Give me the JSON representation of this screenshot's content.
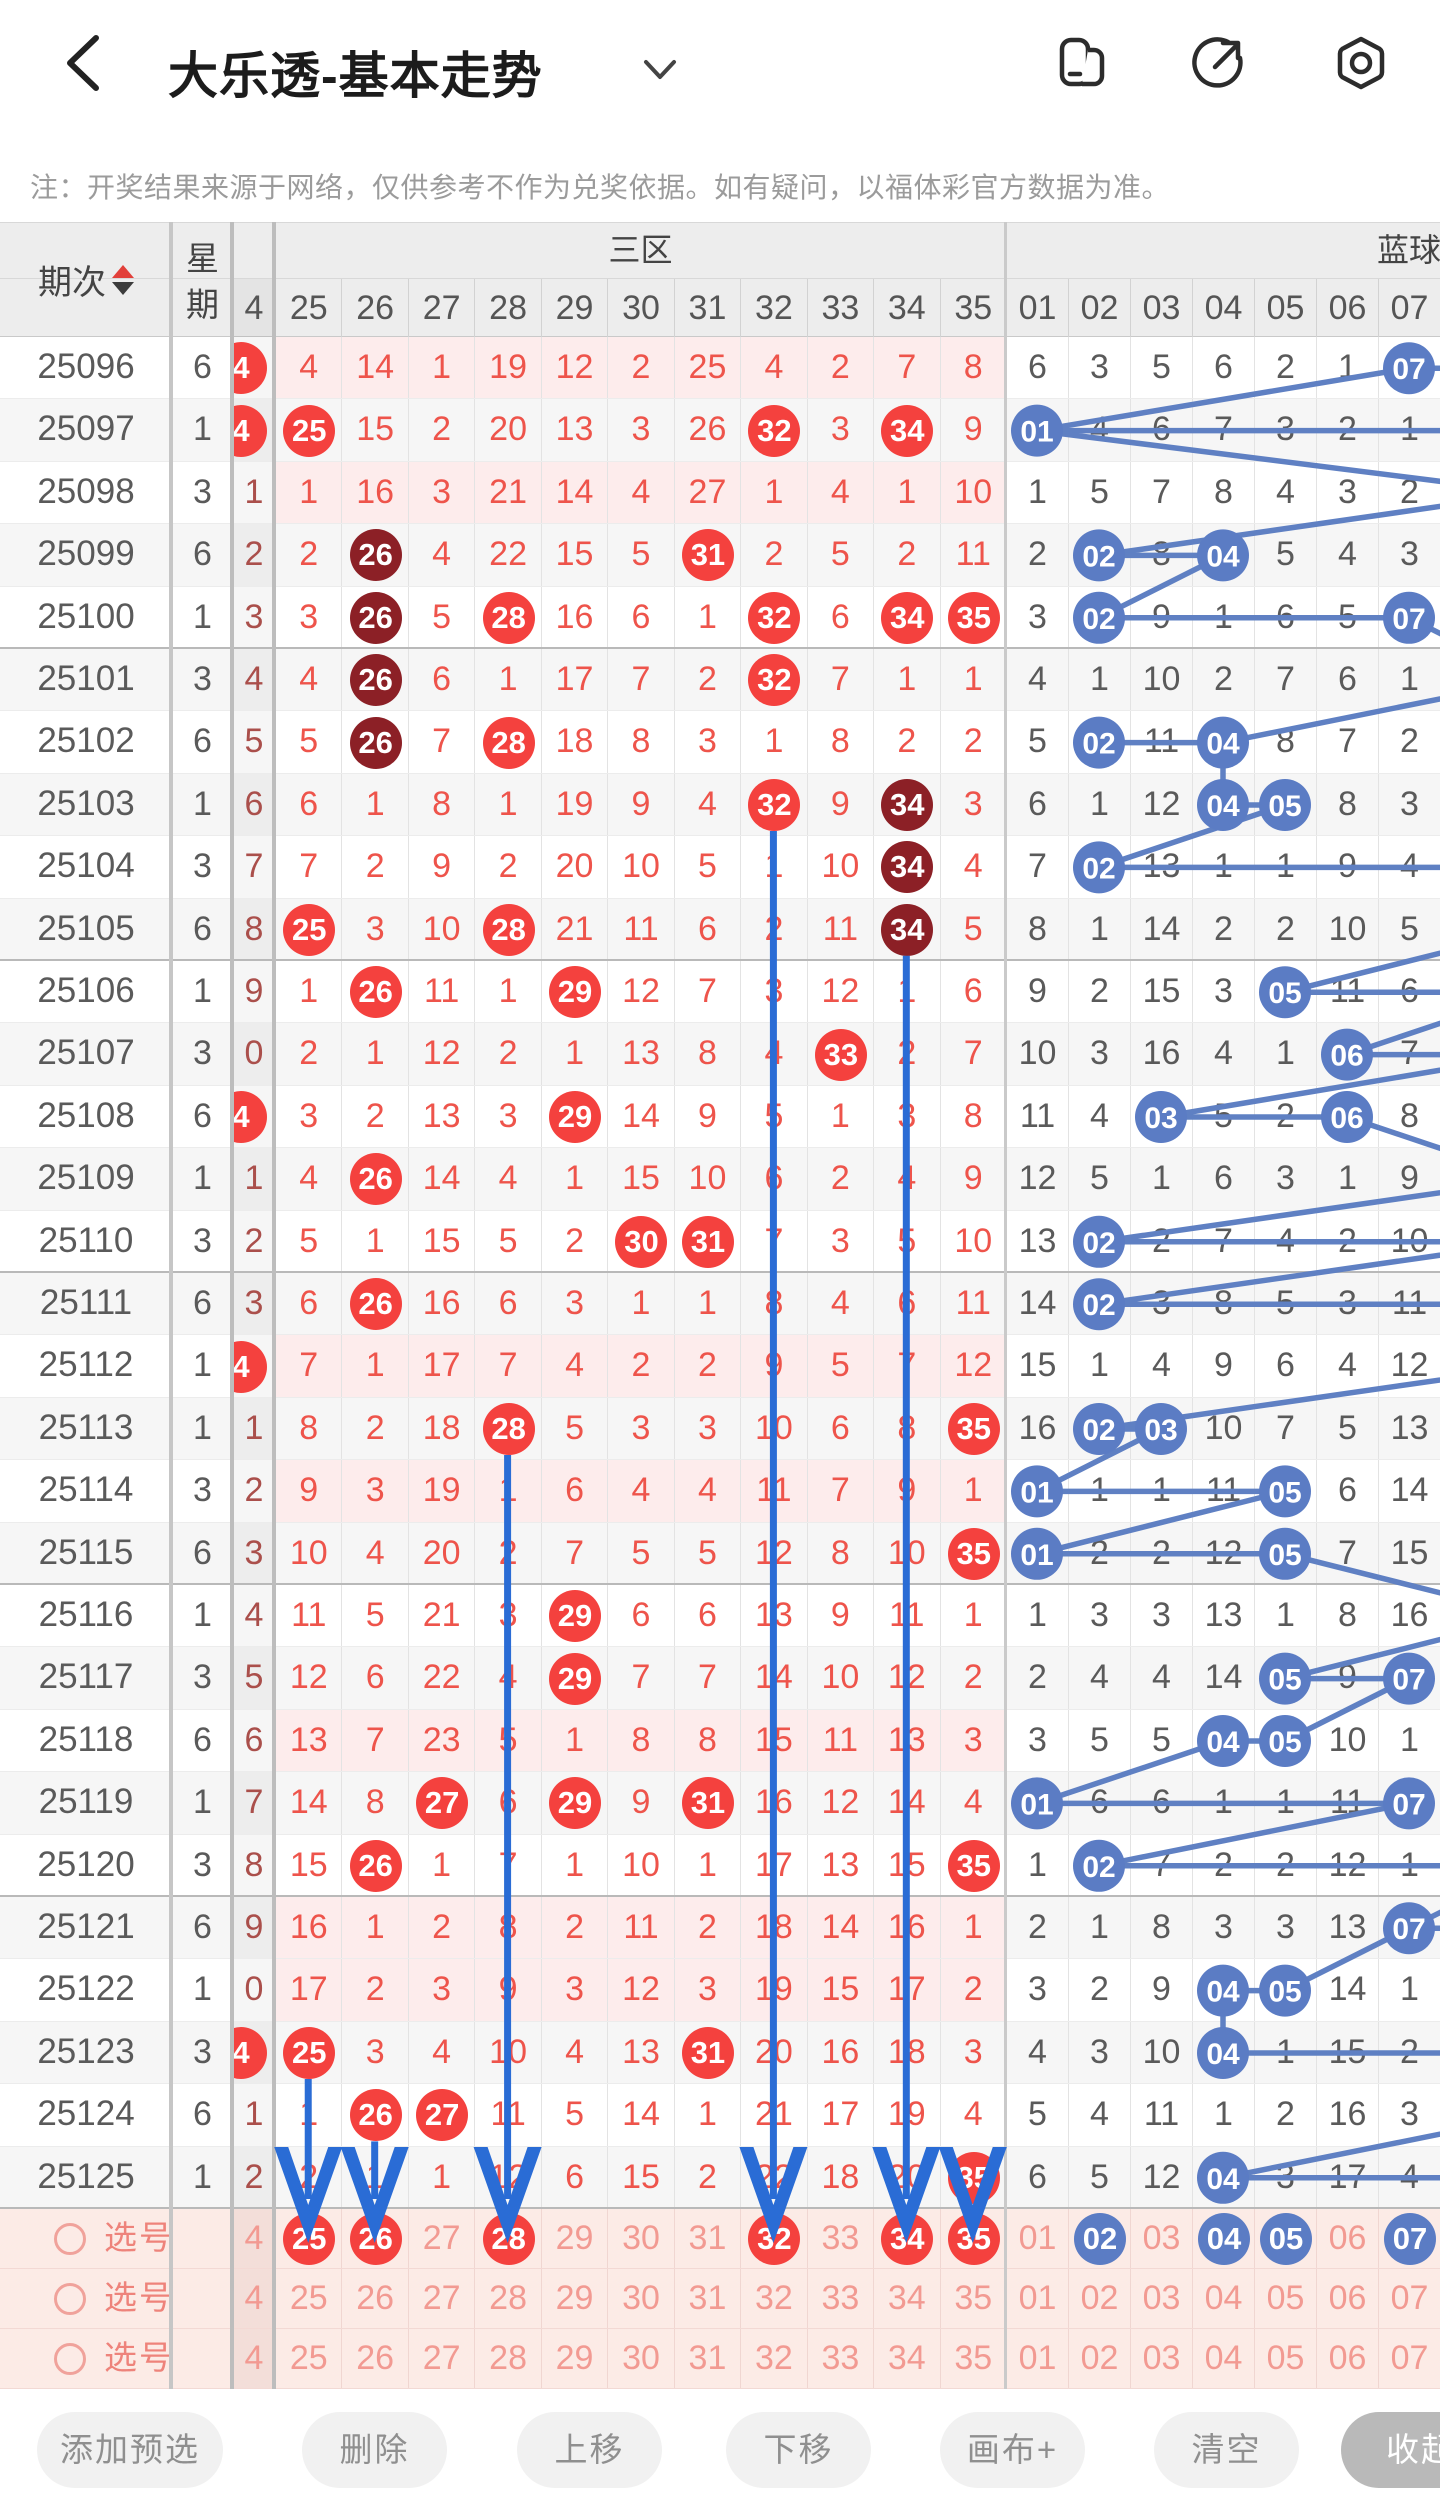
{
  "header": {
    "title": "大乐透-基本走势",
    "icons": [
      "windows-icon",
      "share-icon",
      "record-icon"
    ]
  },
  "note": "注：开奖结果来源于网络，仅供参考不作为兑奖依据。如有疑问，以福体彩官方数据为准。",
  "table": {
    "corner_label": "期次",
    "week_label_top": "星",
    "week_label_bottom": "期",
    "cut_header": "4",
    "zone_labels": [
      "三区",
      "蓝球"
    ],
    "red_cols": [
      "25",
      "26",
      "27",
      "28",
      "29",
      "30",
      "31",
      "32",
      "33",
      "34",
      "35"
    ],
    "blue_cols": [
      "01",
      "02",
      "03",
      "04",
      "05",
      "06",
      "07"
    ],
    "rows": [
      {
        "qi": "25096",
        "wk": "6",
        "cut": "*4",
        "red": [
          "4",
          "14",
          "1",
          "19",
          "12",
          "2",
          "25",
          "4",
          "2",
          "7",
          "8"
        ],
        "blue": [
          "6",
          "3",
          "5",
          "6",
          "2",
          "1",
          "*07"
        ],
        "pink": true
      },
      {
        "qi": "25097",
        "wk": "1",
        "cut": "*4",
        "red": [
          "*25",
          "15",
          "2",
          "20",
          "13",
          "3",
          "26",
          "*32",
          "3",
          "*34",
          "9"
        ],
        "blue": [
          "*01",
          "4",
          "6",
          "7",
          "3",
          "2",
          "1"
        ],
        "pink": false
      },
      {
        "qi": "25098",
        "wk": "3",
        "cut": "1",
        "red": [
          "1",
          "16",
          "3",
          "21",
          "14",
          "4",
          "27",
          "1",
          "4",
          "1",
          "10"
        ],
        "blue": [
          "1",
          "5",
          "7",
          "8",
          "4",
          "3",
          "2"
        ],
        "pink": true
      },
      {
        "qi": "25099",
        "wk": "6",
        "cut": "2",
        "red": [
          "2",
          "#26",
          "4",
          "22",
          "15",
          "5",
          "*31",
          "2",
          "5",
          "2",
          "11"
        ],
        "blue": [
          "2",
          "*02",
          "8",
          "*04",
          "5",
          "4",
          "3"
        ],
        "pink": false
      },
      {
        "qi": "25100",
        "wk": "1",
        "cut": "3",
        "red": [
          "3",
          "#26",
          "5",
          "*28",
          "16",
          "6",
          "1",
          "*32",
          "6",
          "*34",
          "*35"
        ],
        "blue": [
          "3",
          "*02",
          "9",
          "1",
          "6",
          "5",
          "*07"
        ],
        "pink": false
      },
      {
        "qi": "25101",
        "wk": "3",
        "cut": "4",
        "red": [
          "4",
          "#26",
          "6",
          "1",
          "17",
          "7",
          "2",
          "*32",
          "7",
          "1",
          "1"
        ],
        "blue": [
          "4",
          "1",
          "10",
          "2",
          "7",
          "6",
          "1"
        ],
        "pink": false
      },
      {
        "qi": "25102",
        "wk": "6",
        "cut": "5",
        "red": [
          "5",
          "#26",
          "7",
          "*28",
          "18",
          "8",
          "3",
          "1",
          "8",
          "2",
          "2"
        ],
        "blue": [
          "5",
          "*02",
          "11",
          "*04",
          "8",
          "7",
          "2"
        ],
        "pink": false
      },
      {
        "qi": "25103",
        "wk": "1",
        "cut": "6",
        "red": [
          "6",
          "1",
          "8",
          "1",
          "19",
          "9",
          "4",
          "*32",
          "9",
          "#34",
          "3"
        ],
        "blue": [
          "6",
          "1",
          "12",
          "*04",
          "*05",
          "8",
          "3"
        ],
        "pink": false
      },
      {
        "qi": "25104",
        "wk": "3",
        "cut": "7",
        "red": [
          "7",
          "2",
          "9",
          "2",
          "20",
          "10",
          "5",
          "1",
          "10",
          "#34",
          "4"
        ],
        "blue": [
          "7",
          "*02",
          "13",
          "1",
          "1",
          "9",
          "4"
        ],
        "pink": false
      },
      {
        "qi": "25105",
        "wk": "6",
        "cut": "8",
        "red": [
          "*25",
          "3",
          "10",
          "*28",
          "21",
          "11",
          "6",
          "2",
          "11",
          "#34",
          "5"
        ],
        "blue": [
          "8",
          "1",
          "14",
          "2",
          "2",
          "10",
          "5"
        ],
        "pink": false
      },
      {
        "qi": "25106",
        "wk": "1",
        "cut": "9",
        "red": [
          "1",
          "*26",
          "11",
          "1",
          "*29",
          "12",
          "7",
          "3",
          "12",
          "1",
          "6"
        ],
        "blue": [
          "9",
          "2",
          "15",
          "3",
          "*05",
          "11",
          "6"
        ],
        "pink": false
      },
      {
        "qi": "25107",
        "wk": "3",
        "cut": "0",
        "red": [
          "2",
          "1",
          "12",
          "2",
          "1",
          "13",
          "8",
          "4",
          "*33",
          "2",
          "7"
        ],
        "blue": [
          "10",
          "3",
          "16",
          "4",
          "1",
          "*06",
          "7"
        ],
        "pink": false
      },
      {
        "qi": "25108",
        "wk": "6",
        "cut": "*4",
        "red": [
          "3",
          "2",
          "13",
          "3",
          "*29",
          "14",
          "9",
          "5",
          "1",
          "3",
          "8"
        ],
        "blue": [
          "11",
          "4",
          "*03",
          "5",
          "2",
          "*06",
          "8"
        ],
        "pink": false
      },
      {
        "qi": "25109",
        "wk": "1",
        "cut": "1",
        "red": [
          "4",
          "*26",
          "14",
          "4",
          "1",
          "15",
          "10",
          "6",
          "2",
          "4",
          "9"
        ],
        "blue": [
          "12",
          "5",
          "1",
          "6",
          "3",
          "1",
          "9"
        ],
        "pink": false
      },
      {
        "qi": "25110",
        "wk": "3",
        "cut": "2",
        "red": [
          "5",
          "1",
          "15",
          "5",
          "2",
          "*30",
          "*31",
          "7",
          "3",
          "5",
          "10"
        ],
        "blue": [
          "13",
          "*02",
          "2",
          "7",
          "4",
          "2",
          "10"
        ],
        "pink": false
      },
      {
        "qi": "25111",
        "wk": "6",
        "cut": "3",
        "red": [
          "6",
          "*26",
          "16",
          "6",
          "3",
          "1",
          "1",
          "8",
          "4",
          "6",
          "11"
        ],
        "blue": [
          "14",
          "*02",
          "3",
          "8",
          "5",
          "3",
          "11"
        ],
        "pink": false
      },
      {
        "qi": "25112",
        "wk": "1",
        "cut": "*4",
        "red": [
          "7",
          "1",
          "17",
          "7",
          "4",
          "2",
          "2",
          "9",
          "5",
          "7",
          "12"
        ],
        "blue": [
          "15",
          "1",
          "4",
          "9",
          "6",
          "4",
          "12"
        ],
        "pink": true
      },
      {
        "qi": "25113",
        "wk": "1",
        "cut": "1",
        "red": [
          "8",
          "2",
          "18",
          "*28",
          "5",
          "3",
          "3",
          "10",
          "6",
          "8",
          "*35"
        ],
        "blue": [
          "16",
          "*02",
          "*03",
          "10",
          "7",
          "5",
          "13"
        ],
        "pink": false
      },
      {
        "qi": "25114",
        "wk": "3",
        "cut": "2",
        "red": [
          "9",
          "3",
          "19",
          "1",
          "6",
          "4",
          "4",
          "11",
          "7",
          "9",
          "1"
        ],
        "blue": [
          "*01",
          "1",
          "1",
          "11",
          "*05",
          "6",
          "14"
        ],
        "pink": true
      },
      {
        "qi": "25115",
        "wk": "6",
        "cut": "3",
        "red": [
          "10",
          "4",
          "20",
          "2",
          "7",
          "5",
          "5",
          "12",
          "8",
          "10",
          "*35"
        ],
        "blue": [
          "*01",
          "2",
          "2",
          "12",
          "*05",
          "7",
          "15"
        ],
        "pink": false
      },
      {
        "qi": "25116",
        "wk": "1",
        "cut": "4",
        "red": [
          "11",
          "5",
          "21",
          "3",
          "*29",
          "6",
          "6",
          "13",
          "9",
          "11",
          "1"
        ],
        "blue": [
          "1",
          "3",
          "3",
          "13",
          "1",
          "8",
          "16"
        ],
        "pink": false
      },
      {
        "qi": "25117",
        "wk": "3",
        "cut": "5",
        "red": [
          "12",
          "6",
          "22",
          "4",
          "*29",
          "7",
          "7",
          "14",
          "10",
          "12",
          "2"
        ],
        "blue": [
          "2",
          "4",
          "4",
          "14",
          "*05",
          "9",
          "*07"
        ],
        "pink": false
      },
      {
        "qi": "25118",
        "wk": "6",
        "cut": "6",
        "red": [
          "13",
          "7",
          "23",
          "5",
          "1",
          "8",
          "8",
          "15",
          "11",
          "13",
          "3"
        ],
        "blue": [
          "3",
          "5",
          "5",
          "*04",
          "*05",
          "10",
          "1"
        ],
        "pink": true
      },
      {
        "qi": "25119",
        "wk": "1",
        "cut": "7",
        "red": [
          "14",
          "8",
          "*27",
          "6",
          "*29",
          "9",
          "*31",
          "16",
          "12",
          "14",
          "4"
        ],
        "blue": [
          "*01",
          "6",
          "6",
          "1",
          "1",
          "11",
          "*07"
        ],
        "pink": false
      },
      {
        "qi": "25120",
        "wk": "3",
        "cut": "8",
        "red": [
          "15",
          "*26",
          "1",
          "7",
          "1",
          "10",
          "1",
          "17",
          "13",
          "15",
          "*35"
        ],
        "blue": [
          "1",
          "*02",
          "7",
          "2",
          "2",
          "12",
          "1"
        ],
        "pink": false
      },
      {
        "qi": "25121",
        "wk": "6",
        "cut": "9",
        "red": [
          "16",
          "1",
          "2",
          "8",
          "2",
          "11",
          "2",
          "18",
          "14",
          "16",
          "1"
        ],
        "blue": [
          "2",
          "1",
          "8",
          "3",
          "3",
          "13",
          "*07"
        ],
        "pink": true
      },
      {
        "qi": "25122",
        "wk": "1",
        "cut": "0",
        "red": [
          "17",
          "2",
          "3",
          "9",
          "3",
          "12",
          "3",
          "19",
          "15",
          "17",
          "2"
        ],
        "blue": [
          "3",
          "2",
          "9",
          "*04",
          "*05",
          "14",
          "1"
        ],
        "pink": true
      },
      {
        "qi": "25123",
        "wk": "3",
        "cut": "*4",
        "red": [
          "*25",
          "3",
          "4",
          "10",
          "4",
          "13",
          "*31",
          "20",
          "16",
          "18",
          "3"
        ],
        "blue": [
          "4",
          "3",
          "10",
          "*04",
          "1",
          "15",
          "2"
        ],
        "pink": false
      },
      {
        "qi": "25124",
        "wk": "6",
        "cut": "1",
        "red": [
          "1",
          "*26",
          "*27",
          "11",
          "5",
          "14",
          "1",
          "21",
          "17",
          "19",
          "4"
        ],
        "blue": [
          "5",
          "4",
          "11",
          "1",
          "2",
          "16",
          "3"
        ],
        "pink": false
      },
      {
        "qi": "25125",
        "wk": "1",
        "cut": "2",
        "red": [
          "2",
          "1",
          "1",
          "12",
          "6",
          "15",
          "2",
          "22",
          "18",
          "20",
          "*35"
        ],
        "blue": [
          "6",
          "5",
          "12",
          "*04",
          "3",
          "17",
          "4"
        ],
        "pink": false
      }
    ],
    "sel_rows": [
      {
        "label": "选号",
        "cut": "4",
        "red_sel": [
          "25",
          "26",
          "28",
          "32",
          "34",
          "35"
        ],
        "blue_sel": [
          "02",
          "04",
          "05",
          "07"
        ]
      },
      {
        "label": "选号",
        "cut": "4",
        "red_sel": [],
        "blue_sel": []
      },
      {
        "label": "选号",
        "cut": "4",
        "red_sel": [],
        "blue_sel": []
      }
    ]
  },
  "lines": {
    "segments": [
      [
        0,
        7,
        0,
        9
      ],
      [
        0,
        7,
        1,
        1
      ],
      [
        1,
        1,
        1,
        9
      ],
      [
        1,
        1,
        2,
        9
      ],
      [
        2,
        9,
        3,
        2
      ],
      [
        3,
        2,
        3,
        4
      ],
      [
        3,
        4,
        4,
        2
      ],
      [
        4,
        2,
        4,
        7
      ],
      [
        4,
        7,
        5,
        9
      ],
      [
        5,
        9,
        6,
        4
      ],
      [
        6,
        2,
        6,
        4
      ],
      [
        6,
        4,
        7,
        4
      ],
      [
        7,
        4,
        7,
        5
      ],
      [
        7,
        5,
        8,
        2
      ],
      [
        8,
        2,
        8,
        9
      ],
      [
        9,
        9,
        10,
        5
      ],
      [
        10,
        5,
        10,
        9
      ],
      [
        10,
        9,
        11,
        6
      ],
      [
        11,
        6,
        11,
        9
      ],
      [
        11,
        9,
        12,
        3
      ],
      [
        12,
        3,
        12,
        6
      ],
      [
        12,
        6,
        13,
        9
      ],
      [
        13,
        9,
        14,
        2
      ],
      [
        14,
        2,
        14,
        9
      ],
      [
        14,
        9,
        15,
        2
      ],
      [
        15,
        2,
        15,
        9
      ],
      [
        16,
        9,
        17,
        2
      ],
      [
        17,
        2,
        17,
        3
      ],
      [
        17,
        3,
        18,
        1
      ],
      [
        18,
        1,
        18,
        5
      ],
      [
        18,
        5,
        19,
        1
      ],
      [
        19,
        1,
        19,
        5
      ],
      [
        19,
        5,
        20,
        9
      ],
      [
        20,
        9,
        21,
        5
      ],
      [
        21,
        5,
        21,
        7
      ],
      [
        21,
        7,
        22,
        5
      ],
      [
        22,
        4,
        22,
        5
      ],
      [
        22,
        4,
        23,
        1
      ],
      [
        23,
        1,
        23,
        7
      ],
      [
        23,
        7,
        24,
        2
      ],
      [
        24,
        2,
        24,
        9
      ],
      [
        24,
        9,
        25,
        7
      ],
      [
        25,
        7,
        25,
        9
      ],
      [
        25,
        7,
        26,
        5
      ],
      [
        26,
        4,
        26,
        5
      ],
      [
        26,
        4,
        27,
        4
      ],
      [
        27,
        4,
        27,
        9
      ],
      [
        28,
        9,
        29,
        4
      ],
      [
        29,
        4,
        29,
        9
      ]
    ],
    "arrows": [
      {
        "col": 25,
        "from": 27
      },
      {
        "col": 26,
        "from": 28
      },
      {
        "col": 28,
        "from": 17
      },
      {
        "col": 32,
        "from": 7
      },
      {
        "col": 34,
        "from": 9
      },
      {
        "col": 35,
        "from": 29
      }
    ]
  },
  "toolbar": {
    "buttons": [
      "添加预选",
      "删除",
      "上移",
      "下移",
      "画布+",
      "清空",
      "收起"
    ]
  },
  "colors": {
    "red_text": "#ee544b",
    "cut_text": "#aa4f4b",
    "red_ball": "#f4413e",
    "dark_ball": "#8c2026",
    "blue_ball": "#5b7cc4",
    "line_blue": "#5f80c3",
    "arrow_blue": "#2a6cd5",
    "pink_row": "#fdecec",
    "sel_bg": "#fcebe6",
    "sel_cut_bg": "#f3ded9",
    "sel_num": "#f29a92",
    "sel_label": "#ee837b",
    "header_bg": "#ededed",
    "gray_text": "#5a5a5a",
    "stripe": "#f6f6f6"
  }
}
